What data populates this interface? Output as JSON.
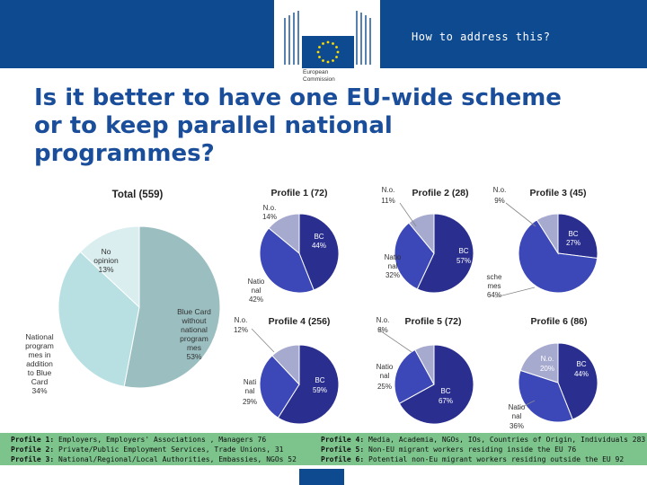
{
  "header": {
    "section_title": "How to address this?",
    "logo_lines": [
      "European",
      "Commission"
    ],
    "brand_color": "#0e4a8f",
    "logo_icon": "eu-flag-icon"
  },
  "title": {
    "lines": [
      "Is it better to have one EU-wide scheme",
      "or to keep parallel national",
      "programmes?"
    ]
  },
  "chart_data": [
    {
      "type": "pie",
      "title": "Total (559)",
      "slices": [
        {
          "label": "Blue Card without national programmes",
          "value": 53,
          "color": "#9bbfc0"
        },
        {
          "label": "National programmes in addition to Blue Card",
          "value": 34,
          "color": "#b8dfe2"
        },
        {
          "label": "No opinion",
          "value": 13,
          "color": "#daeef0"
        }
      ],
      "labels_text": [
        "Blue Card",
        "without",
        "national",
        "program",
        "mes",
        "53%",
        "National",
        "program",
        "mes in",
        "addition",
        "to Blue",
        "Card",
        "34%",
        "No",
        "opinion",
        "13%"
      ]
    },
    {
      "type": "pie",
      "title": "Profile 1 (72)",
      "slices": [
        {
          "label": "BC",
          "value": 44
        },
        {
          "label": "National",
          "value": 42
        },
        {
          "label": "N.o.",
          "value": 14
        }
      ],
      "labels_text": [
        "BC",
        "44%",
        "Natio",
        "nal",
        "42%",
        "N.o.",
        "14%"
      ]
    },
    {
      "type": "pie",
      "title": "Profile 2 (28)",
      "slices": [
        {
          "label": "BC",
          "value": 57
        },
        {
          "label": "National",
          "value": 32
        },
        {
          "label": "N.o.",
          "value": 11
        }
      ],
      "labels_text": [
        "BC",
        "57%",
        "Natio",
        "nal",
        "32%",
        "N.o.",
        "11%"
      ]
    },
    {
      "type": "pie",
      "title": "Profile 3 (45)",
      "slices": [
        {
          "label": "BC",
          "value": 27
        },
        {
          "label": "National schemes",
          "value": 64
        },
        {
          "label": "N.o.",
          "value": 9
        }
      ],
      "labels_text": [
        "BC",
        "27%",
        "sche",
        "mes",
        "64%",
        "N.o.",
        "9%"
      ]
    },
    {
      "type": "pie",
      "title": "Profile 4 (256)",
      "slices": [
        {
          "label": "BC",
          "value": 59
        },
        {
          "label": "National",
          "value": 29
        },
        {
          "label": "N.o.",
          "value": 12
        }
      ],
      "labels_text": [
        "BC",
        "59%",
        "Nati",
        "nal",
        "29%",
        "N.o.",
        "12%"
      ]
    },
    {
      "type": "pie",
      "title": "Profile 5 (72)",
      "slices": [
        {
          "label": "BC",
          "value": 67
        },
        {
          "label": "National",
          "value": 25
        },
        {
          "label": "N.o.",
          "value": 8
        }
      ],
      "labels_text": [
        "BC",
        "67%",
        "Natio",
        "nal",
        "25%",
        "N.o.",
        "8%"
      ]
    },
    {
      "type": "pie",
      "title": "Profile 6 (86)",
      "slices": [
        {
          "label": "BC",
          "value": 44
        },
        {
          "label": "National",
          "value": 36
        },
        {
          "label": "N.o.",
          "value": 20
        }
      ],
      "labels_text": [
        "BC",
        "44%",
        "Natio",
        "nal",
        "36%",
        "N.o.",
        "20%"
      ]
    }
  ],
  "profile_colors": {
    "bc": "#2a2f8f",
    "national": "#3c48b8",
    "no": "#a7aacf",
    "line": "#ffffff"
  },
  "legend": [
    {
      "key": "Profile 1:",
      "text": "Employers, Employers' Associations , Managers 76"
    },
    {
      "key": "Profile 2:",
      "text": "Private/Public Employment Services, Trade Unions, 31"
    },
    {
      "key": "Profile 3:",
      "text": "National/Regional/Local Authorities, Embassies, NGOs 52"
    },
    {
      "key": "Profile 4:",
      "text": "Media, Academia, NGOs, IOs, Countries of Origin, Individuals 283"
    },
    {
      "key": "Profile 5:",
      "text": "Non-EU migrant workers residing inside the EU 76"
    },
    {
      "key": "Profile 6:",
      "text": "Potential non-Eu migrant workers residing outside the EU 92"
    }
  ],
  "footer_color": "#7cc48c"
}
